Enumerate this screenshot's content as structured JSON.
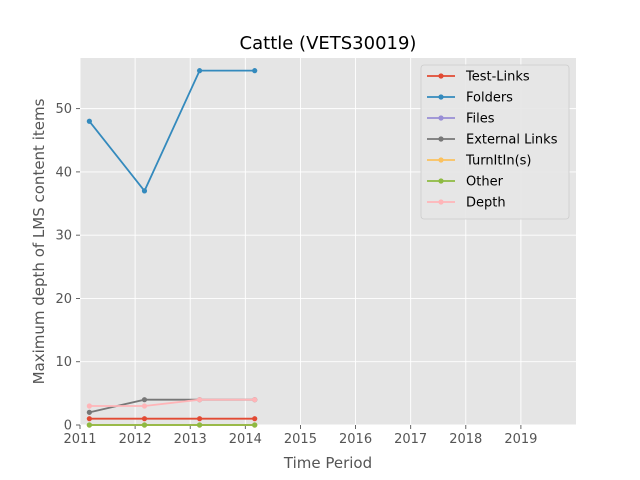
{
  "chart_data": {
    "type": "line",
    "title": "Cattle (VETS30019)",
    "xlabel": "Time Period",
    "ylabel": "Maximum depth of LMS content items",
    "xlim": [
      2011,
      2020
    ],
    "ylim": [
      0,
      58
    ],
    "xticks": [
      2011,
      2012,
      2013,
      2014,
      2015,
      2016,
      2017,
      2018,
      2019
    ],
    "yticks": [
      0,
      10,
      20,
      30,
      40,
      50
    ],
    "grid": true,
    "legend_position": "top-right",
    "x": [
      2011.17,
      2012.17,
      2013.17,
      2014.17
    ],
    "series": [
      {
        "name": "Test-Links",
        "color": "#E24A33",
        "values": [
          1,
          1,
          1,
          1
        ]
      },
      {
        "name": "Folders",
        "color": "#348ABD",
        "values": [
          48,
          37,
          56,
          56
        ]
      },
      {
        "name": "Files",
        "color": "#988ED5",
        "values": [
          0,
          0,
          0,
          0
        ]
      },
      {
        "name": "External Links",
        "color": "#777777",
        "values": [
          2,
          4,
          4,
          4
        ]
      },
      {
        "name": "TurnItIn(s)",
        "color": "#FBC15E",
        "values": [
          0,
          0,
          0,
          0
        ]
      },
      {
        "name": "Other",
        "color": "#8EBA42",
        "values": [
          0,
          0,
          0,
          0
        ]
      },
      {
        "name": "Depth",
        "color": "#FFB5B8",
        "values": [
          3,
          3,
          4,
          4
        ]
      }
    ]
  }
}
